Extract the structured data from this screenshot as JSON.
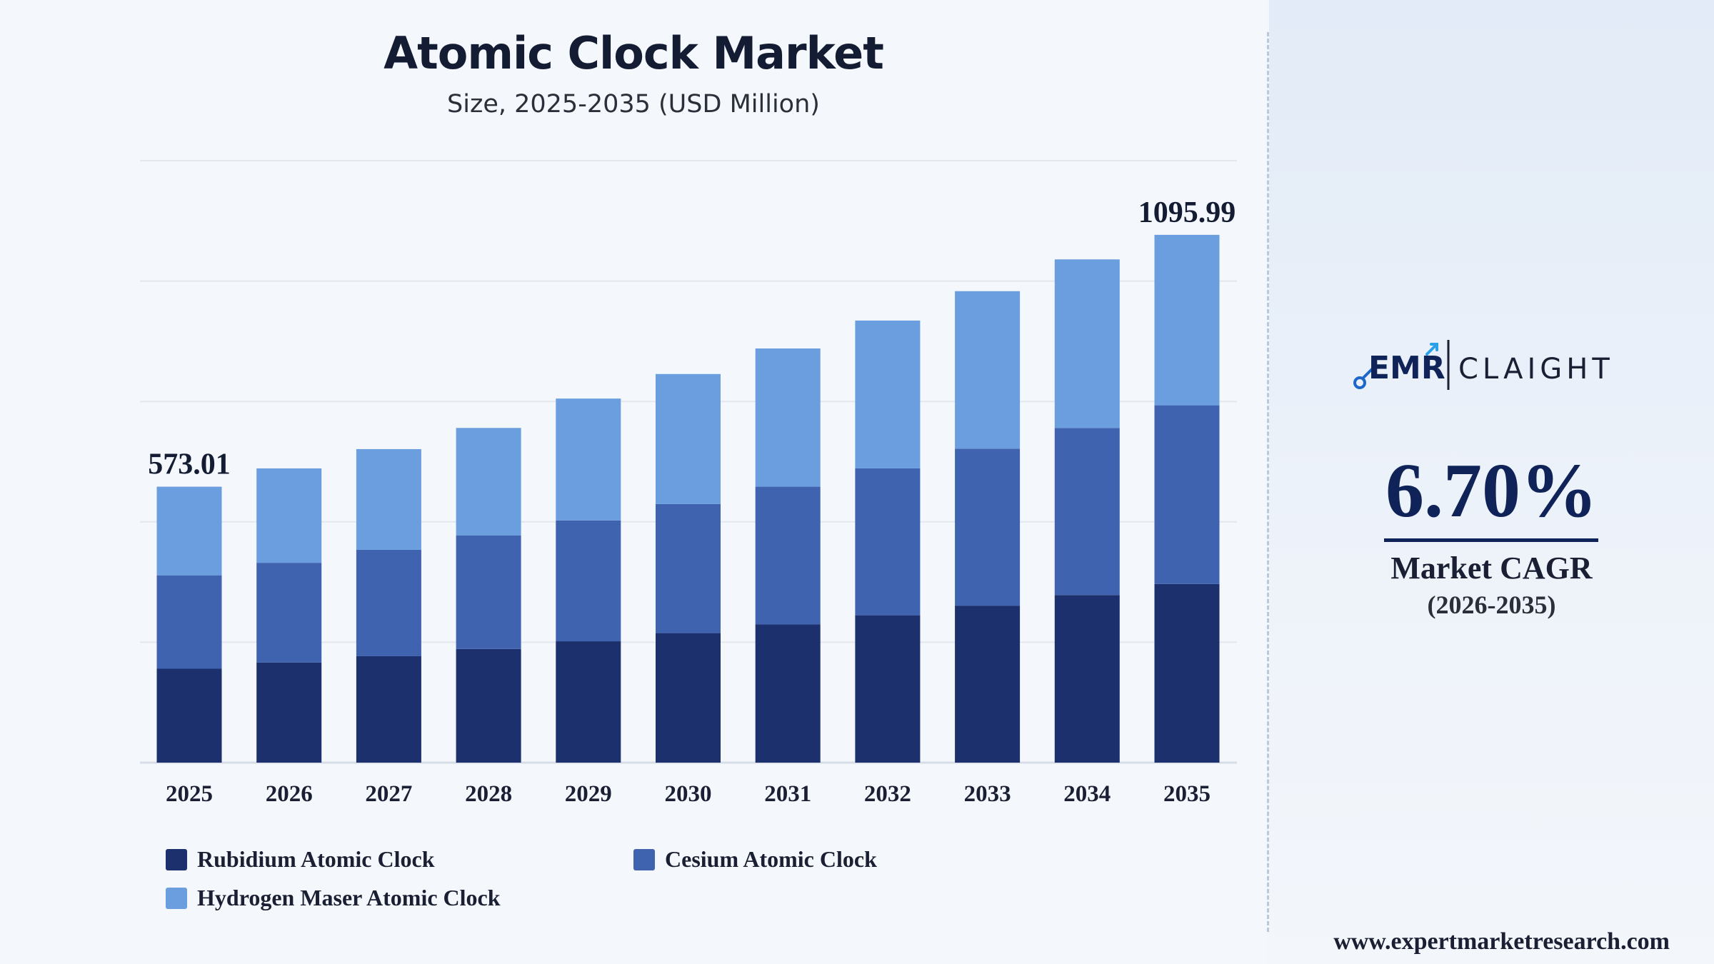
{
  "header": {
    "title": "Atomic Clock Market",
    "subtitle": "Size, 2025-2035 (USD Million)"
  },
  "chart_data": {
    "type": "bar",
    "stacked": true,
    "title": "Atomic Clock Market",
    "subtitle": "Size, 2025-2035 (USD Million)",
    "xlabel": "",
    "ylabel": "",
    "ylim": [
      0,
      1250
    ],
    "grid": true,
    "legend_position": "bottom-left",
    "categories": [
      "2025",
      "2026",
      "2027",
      "2028",
      "2029",
      "2030",
      "2031",
      "2032",
      "2033",
      "2034",
      "2035"
    ],
    "series": [
      {
        "name": "Rubidium Atomic Clock",
        "color": "#1b306d",
        "values": [
          195,
          208,
          221,
          236,
          252,
          269,
          287,
          306,
          326,
          348,
          371
        ]
      },
      {
        "name": "Cesium Atomic Clock",
        "color": "#4063b0",
        "values": [
          194,
          207,
          221,
          236,
          251,
          268,
          286,
          305,
          326,
          347,
          371
        ]
      },
      {
        "name": "Hydrogen Maser Atomic Clock",
        "color": "#6a9edf",
        "values": [
          184.01,
          196,
          209,
          223,
          253,
          270,
          287,
          307,
          327,
          350,
          353.99
        ]
      }
    ],
    "annotations": [
      {
        "category": "2025",
        "text": "573.01"
      },
      {
        "category": "2035",
        "text": "1095.99"
      }
    ]
  },
  "sidebar": {
    "logo": {
      "left": "EMR",
      "right": "CLAIGHT"
    },
    "cagr_value": "6.70%",
    "cagr_label": "Market CAGR",
    "cagr_period": "(2026-2035)",
    "website": "www.expertmarketresearch.com"
  }
}
